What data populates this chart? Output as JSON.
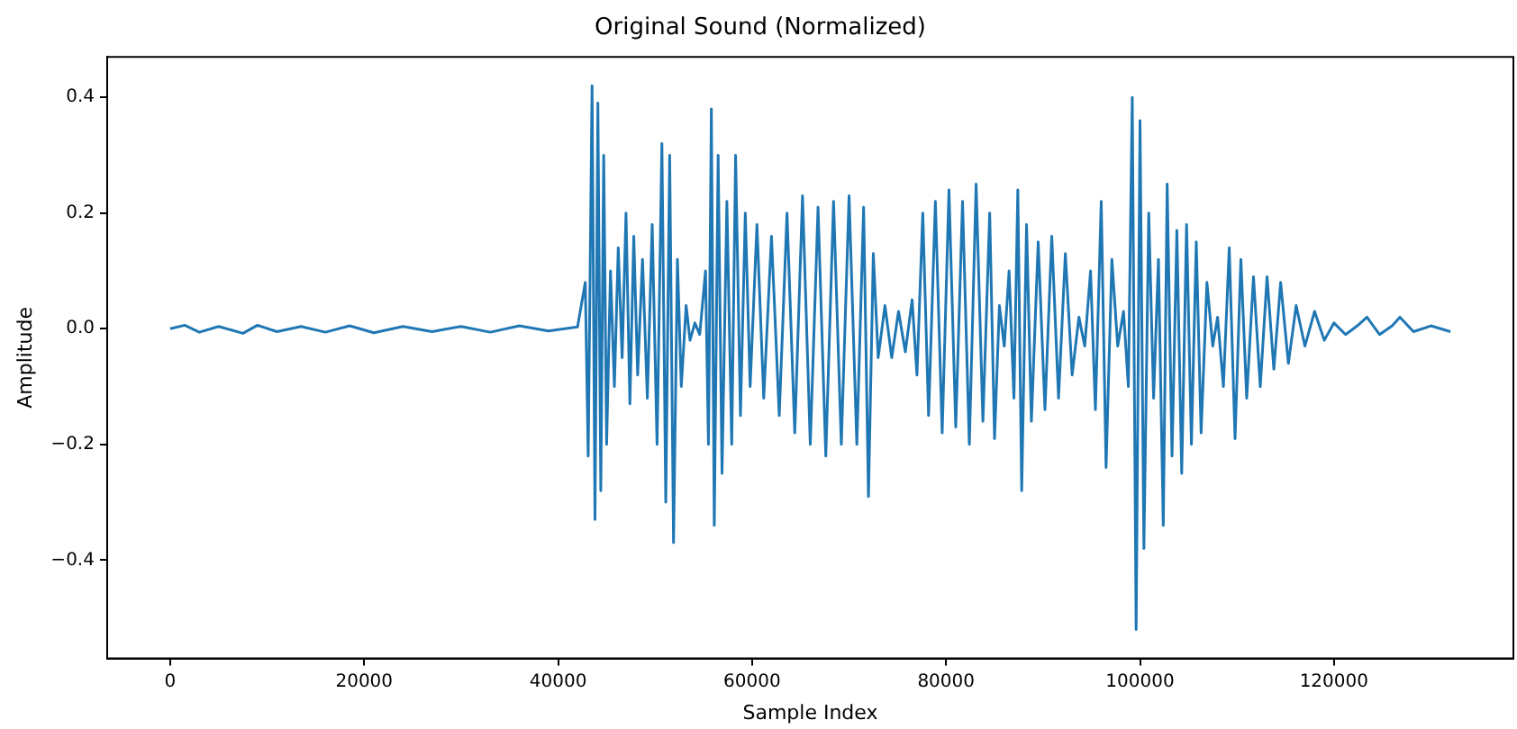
{
  "chart_data": {
    "type": "line",
    "title": "Original Sound (Normalized)",
    "xlabel": "Sample Index",
    "ylabel": "Amplitude",
    "x": [
      0,
      1500,
      3000,
      5000,
      7500,
      9000,
      11000,
      13500,
      16000,
      18500,
      21000,
      24000,
      27000,
      30000,
      33000,
      36000,
      39000,
      42000,
      42800,
      43100,
      43500,
      43800,
      44100,
      44400,
      44700,
      45000,
      45400,
      45800,
      46200,
      46600,
      47000,
      47400,
      47800,
      48200,
      48700,
      49200,
      49700,
      50200,
      50700,
      51100,
      51500,
      51900,
      52300,
      52700,
      53200,
      53600,
      54100,
      54600,
      55200,
      55500,
      55800,
      56100,
      56500,
      56900,
      57400,
      57900,
      58300,
      58800,
      59300,
      59800,
      60500,
      61200,
      62000,
      62800,
      63600,
      64400,
      65200,
      66000,
      66800,
      67600,
      68400,
      69200,
      70000,
      70800,
      71500,
      72000,
      72500,
      73000,
      73700,
      74400,
      75100,
      75800,
      76500,
      77000,
      77600,
      78200,
      78900,
      79600,
      80300,
      81000,
      81700,
      82400,
      83100,
      83800,
      84500,
      85000,
      85500,
      86000,
      86500,
      87000,
      87400,
      87800,
      88300,
      88800,
      89500,
      90200,
      90900,
      91600,
      92300,
      93000,
      93700,
      94300,
      94900,
      95400,
      96000,
      96500,
      97100,
      97700,
      98300,
      98800,
      99200,
      99600,
      100000,
      100400,
      100900,
      101400,
      101900,
      102400,
      102800,
      103300,
      103800,
      104300,
      104800,
      105300,
      105800,
      106300,
      106900,
      107500,
      108000,
      108600,
      109200,
      109800,
      110400,
      111000,
      111700,
      112400,
      113100,
      113800,
      114500,
      115300,
      116100,
      117000,
      118000,
      119000,
      120000,
      121200,
      122400,
      123400,
      124700,
      126000,
      126800,
      128200,
      130000,
      132000
    ],
    "series": [
      {
        "color": "#1f77b4",
        "values": [
          0,
          0.006,
          -0.006,
          0.004,
          -0.008,
          0.006,
          -0.005,
          0.004,
          -0.006,
          0.005,
          -0.007,
          0.004,
          -0.005,
          0.004,
          -0.006,
          0.005,
          -0.004,
          0.003,
          0.08,
          -0.22,
          0.42,
          -0.33,
          0.39,
          -0.28,
          0.3,
          -0.2,
          0.1,
          -0.1,
          0.14,
          -0.05,
          0.2,
          -0.13,
          0.16,
          -0.08,
          0.12,
          -0.12,
          0.18,
          -0.2,
          0.32,
          -0.3,
          0.3,
          -0.37,
          0.12,
          -0.1,
          0.04,
          -0.02,
          0.01,
          -0.01,
          0.1,
          -0.2,
          0.38,
          -0.34,
          0.3,
          -0.25,
          0.22,
          -0.2,
          0.3,
          -0.15,
          0.2,
          -0.1,
          0.18,
          -0.12,
          0.16,
          -0.15,
          0.2,
          -0.18,
          0.23,
          -0.2,
          0.21,
          -0.22,
          0.22,
          -0.2,
          0.23,
          -0.2,
          0.21,
          -0.29,
          0.13,
          -0.05,
          0.04,
          -0.05,
          0.03,
          -0.04,
          0.05,
          -0.08,
          0.2,
          -0.15,
          0.22,
          -0.18,
          0.24,
          -0.17,
          0.22,
          -0.2,
          0.25,
          -0.16,
          0.2,
          -0.19,
          0.04,
          -0.03,
          0.1,
          -0.12,
          0.24,
          -0.28,
          0.18,
          -0.16,
          0.15,
          -0.14,
          0.16,
          -0.12,
          0.13,
          -0.08,
          0.02,
          -0.03,
          0.1,
          -0.14,
          0.22,
          -0.24,
          0.12,
          -0.03,
          0.03,
          -0.1,
          0.4,
          -0.52,
          0.36,
          -0.38,
          0.2,
          -0.12,
          0.12,
          -0.34,
          0.25,
          -0.22,
          0.17,
          -0.25,
          0.18,
          -0.2,
          0.15,
          -0.18,
          0.08,
          -0.03,
          0.02,
          -0.1,
          0.14,
          -0.19,
          0.12,
          -0.12,
          0.09,
          -0.1,
          0.09,
          -0.07,
          0.08,
          -0.06,
          0.04,
          -0.03,
          0.03,
          -0.02,
          0.01,
          -0.01,
          0.005,
          0.02,
          -0.01,
          0.005,
          0.02,
          -0.005,
          0.005,
          -0.005
        ]
      }
    ],
    "xlim": [
      -6500,
      138500
    ],
    "ylim": [
      -0.57,
      0.47
    ],
    "xticks": [
      0,
      20000,
      40000,
      60000,
      80000,
      100000,
      120000
    ],
    "yticks": [
      {
        "value": -0.4,
        "label": "−0.4"
      },
      {
        "value": -0.2,
        "label": "−0.2"
      },
      {
        "value": 0,
        "label": "0.0"
      },
      {
        "value": 0.2,
        "label": "0.2"
      },
      {
        "value": 0.4,
        "label": "0.4"
      }
    ],
    "marker": "none",
    "line_style": "solid",
    "grid": false,
    "legend": false
  }
}
